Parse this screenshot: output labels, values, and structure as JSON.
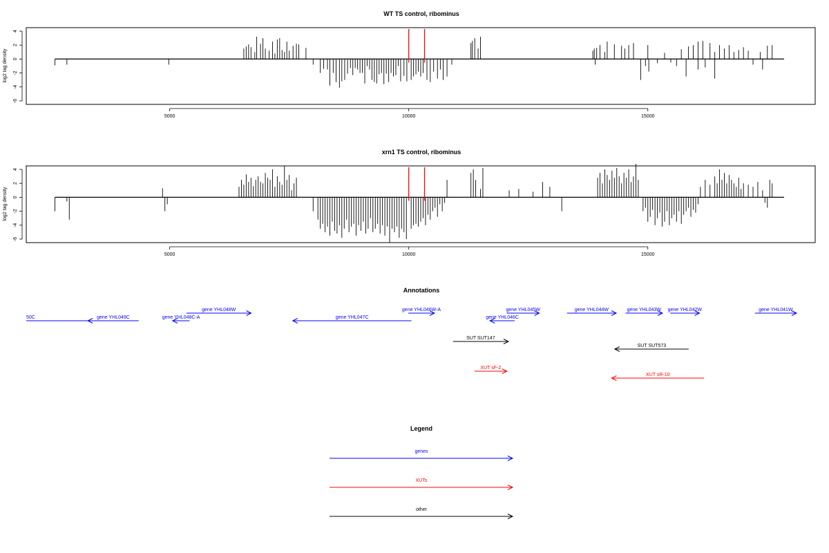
{
  "chart_data": [
    {
      "type": "bar",
      "title": "WT TS control, ribominus",
      "xlabel": "",
      "ylabel": "log2 tag density",
      "xlim": [
        2000,
        18500
      ],
      "ylim": [
        -6.5,
        4.5
      ],
      "xticks": [
        5000,
        10000,
        15000
      ],
      "yticks": [
        -6,
        -4,
        -2,
        0,
        2,
        4
      ],
      "grid": false,
      "markers": {
        "color": "#ff0000",
        "x": [
          10000,
          10330
        ],
        "y": [
          -0.5,
          4.3
        ]
      },
      "bars": [
        [
          2600,
          -0.9
        ],
        [
          2850,
          -0.8
        ],
        [
          4980,
          -0.8
        ],
        [
          6550,
          1.5
        ],
        [
          6600,
          1.8
        ],
        [
          6650,
          2.1
        ],
        [
          6700,
          1.7
        ],
        [
          6780,
          1.0
        ],
        [
          6820,
          3.2
        ],
        [
          6900,
          2.2
        ],
        [
          6950,
          3.0
        ],
        [
          7000,
          1.5
        ],
        [
          7080,
          1.2
        ],
        [
          7150,
          2.5
        ],
        [
          7200,
          0.8
        ],
        [
          7250,
          2.8
        ],
        [
          7300,
          3.0
        ],
        [
          7350,
          1.3
        ],
        [
          7400,
          1.0
        ],
        [
          7450,
          2.5
        ],
        [
          7500,
          1.2
        ],
        [
          7580,
          1.9
        ],
        [
          7650,
          2.2
        ],
        [
          7700,
          2.1
        ],
        [
          7850,
          1.6
        ],
        [
          8000,
          -0.8
        ],
        [
          8150,
          -2.0
        ],
        [
          8220,
          -1.4
        ],
        [
          8300,
          -1.5
        ],
        [
          8350,
          -3.8
        ],
        [
          8420,
          -2.0
        ],
        [
          8480,
          -3.3
        ],
        [
          8550,
          -4.1
        ],
        [
          8600,
          -3.2
        ],
        [
          8660,
          -3.0
        ],
        [
          8720,
          -2.1
        ],
        [
          8780,
          -1.3
        ],
        [
          8830,
          -2.3
        ],
        [
          8880,
          -1.3
        ],
        [
          8930,
          -1.5
        ],
        [
          8980,
          -2.0
        ],
        [
          9030,
          -2.0
        ],
        [
          9080,
          -3.5
        ],
        [
          9130,
          -1.0
        ],
        [
          9180,
          -1.5
        ],
        [
          9230,
          -3.0
        ],
        [
          9280,
          -3.3
        ],
        [
          9330,
          -3.5
        ],
        [
          9380,
          -2.2
        ],
        [
          9430,
          -2.0
        ],
        [
          9480,
          -3.6
        ],
        [
          9530,
          -2.1
        ],
        [
          9580,
          -3.3
        ],
        [
          9630,
          -2.0
        ],
        [
          9680,
          -2.5
        ],
        [
          9730,
          -2.3
        ],
        [
          9780,
          -1.0
        ],
        [
          9830,
          -3.2
        ],
        [
          9900,
          -2.4
        ],
        [
          9960,
          -3.2
        ],
        [
          10050,
          -3.0
        ],
        [
          10100,
          -2.5
        ],
        [
          10150,
          -2.2
        ],
        [
          10200,
          -1.8
        ],
        [
          10250,
          -2.5
        ],
        [
          10300,
          -2.0
        ],
        [
          10380,
          -3.0
        ],
        [
          10450,
          -3.3
        ],
        [
          10520,
          -1.8
        ],
        [
          10600,
          -2.8
        ],
        [
          10660,
          -1.5
        ],
        [
          10720,
          -3.0
        ],
        [
          10800,
          -2.5
        ],
        [
          10900,
          -0.8
        ],
        [
          11300,
          2.3
        ],
        [
          11330,
          2.6
        ],
        [
          11380,
          3.0
        ],
        [
          11450,
          1.5
        ],
        [
          11500,
          3.2
        ],
        [
          13850,
          1.2
        ],
        [
          13880,
          1.5
        ],
        [
          13900,
          -0.8
        ],
        [
          13930,
          1.6
        ],
        [
          14000,
          2.0
        ],
        [
          14100,
          1.0
        ],
        [
          14150,
          2.5
        ],
        [
          14300,
          2.1
        ],
        [
          14450,
          1.9
        ],
        [
          14520,
          1.5
        ],
        [
          14600,
          2.0
        ],
        [
          14700,
          2.3
        ],
        [
          14850,
          -3.0
        ],
        [
          14950,
          -1.0
        ],
        [
          15000,
          2.0
        ],
        [
          15020,
          -1.8
        ],
        [
          15200,
          -0.6
        ],
        [
          15350,
          0.9
        ],
        [
          15480,
          -0.5
        ],
        [
          15600,
          -1.0
        ],
        [
          15700,
          1.4
        ],
        [
          15800,
          -2.5
        ],
        [
          15850,
          1.8
        ],
        [
          15950,
          2.0
        ],
        [
          16050,
          -1.5
        ],
        [
          16050,
          2.5
        ],
        [
          16150,
          2.6
        ],
        [
          16200,
          -1.2
        ],
        [
          16300,
          2.3
        ],
        [
          16400,
          -2.8
        ],
        [
          16400,
          1.0
        ],
        [
          16500,
          2.0
        ],
        [
          16600,
          1.5
        ],
        [
          16700,
          2.0
        ],
        [
          16800,
          1.0
        ],
        [
          16900,
          1.3
        ],
        [
          17000,
          1.7
        ],
        [
          17100,
          1.2
        ],
        [
          17200,
          -0.8
        ],
        [
          17350,
          1.0
        ],
        [
          17400,
          -1.5
        ],
        [
          17500,
          1.9
        ],
        [
          17600,
          2.0
        ]
      ]
    },
    {
      "type": "bar",
      "title": "xrn1 TS control, ribominus",
      "xlabel": "",
      "ylabel": "log2 tag density",
      "xlim": [
        2000,
        18500
      ],
      "ylim": [
        -6.5,
        4.5
      ],
      "xticks": [
        5000,
        10000,
        15000
      ],
      "yticks": [
        -6,
        -4,
        -2,
        0,
        2,
        4
      ],
      "grid": false,
      "markers": {
        "color": "#ff0000",
        "x": [
          10000,
          10330
        ],
        "y": [
          -0.5,
          4.3
        ]
      },
      "bars": [
        [
          2600,
          -2.0
        ],
        [
          2850,
          -0.6
        ],
        [
          2900,
          -3.2
        ],
        [
          4850,
          1.3
        ],
        [
          4900,
          -2.0
        ],
        [
          4950,
          -1.0
        ],
        [
          6450,
          1.5
        ],
        [
          6500,
          2.5
        ],
        [
          6550,
          1.8
        ],
        [
          6600,
          3.3
        ],
        [
          6650,
          2.2
        ],
        [
          6700,
          2.8
        ],
        [
          6750,
          1.6
        ],
        [
          6800,
          2.5
        ],
        [
          6850,
          3.0
        ],
        [
          6900,
          2.2
        ],
        [
          6950,
          2.0
        ],
        [
          7000,
          3.5
        ],
        [
          7050,
          2.8
        ],
        [
          7100,
          2.5
        ],
        [
          7150,
          4.0
        ],
        [
          7200,
          1.5
        ],
        [
          7250,
          3.0
        ],
        [
          7300,
          2.2
        ],
        [
          7350,
          1.8
        ],
        [
          7400,
          4.5
        ],
        [
          7450,
          2.5
        ],
        [
          7500,
          3.2
        ],
        [
          7550,
          1.0
        ],
        [
          7600,
          2.0
        ],
        [
          7650,
          2.8
        ],
        [
          8000,
          -2.0
        ],
        [
          8100,
          -3.2
        ],
        [
          8150,
          -4.5
        ],
        [
          8200,
          -3.8
        ],
        [
          8250,
          -5.0
        ],
        [
          8300,
          -4.2
        ],
        [
          8350,
          -5.5
        ],
        [
          8400,
          -3.5
        ],
        [
          8450,
          -4.8
        ],
        [
          8500,
          -5.2
        ],
        [
          8550,
          -4.0
        ],
        [
          8600,
          -5.8
        ],
        [
          8650,
          -4.5
        ],
        [
          8700,
          -3.2
        ],
        [
          8750,
          -5.0
        ],
        [
          8800,
          -4.2
        ],
        [
          8850,
          -3.8
        ],
        [
          8900,
          -5.5
        ],
        [
          8950,
          -4.0
        ],
        [
          9000,
          -4.8
        ],
        [
          9050,
          -3.5
        ],
        [
          9100,
          -5.2
        ],
        [
          9150,
          -4.5
        ],
        [
          9200,
          -3.0
        ],
        [
          9250,
          -5.0
        ],
        [
          9300,
          -4.5
        ],
        [
          9350,
          -3.8
        ],
        [
          9400,
          -5.2
        ],
        [
          9450,
          -4.0
        ],
        [
          9500,
          -5.5
        ],
        [
          9550,
          -4.2
        ],
        [
          9600,
          -6.5
        ],
        [
          9650,
          -4.5
        ],
        [
          9700,
          -5.0
        ],
        [
          9750,
          -4.2
        ],
        [
          9800,
          -5.8
        ],
        [
          9850,
          -4.5
        ],
        [
          9900,
          -5.0
        ],
        [
          9950,
          -6.0
        ],
        [
          10050,
          -4.5
        ],
        [
          10100,
          -4.0
        ],
        [
          10150,
          -3.8
        ],
        [
          10200,
          -4.2
        ],
        [
          10250,
          -3.5
        ],
        [
          10300,
          -3.0
        ],
        [
          10350,
          -4.0
        ],
        [
          10400,
          -2.5
        ],
        [
          10450,
          -3.2
        ],
        [
          10500,
          -2.0
        ],
        [
          10550,
          -1.5
        ],
        [
          10600,
          -2.8
        ],
        [
          10650,
          -1.0
        ],
        [
          10700,
          -2.0
        ],
        [
          10750,
          -0.8
        ],
        [
          10800,
          2.5
        ],
        [
          11300,
          3.5
        ],
        [
          11350,
          4.0
        ],
        [
          11400,
          2.5
        ],
        [
          11500,
          1.2
        ],
        [
          11550,
          4.2
        ],
        [
          12100,
          1.0
        ],
        [
          12300,
          1.2
        ],
        [
          12600,
          0.8
        ],
        [
          12800,
          2.2
        ],
        [
          12950,
          1.5
        ],
        [
          13200,
          -2.0
        ],
        [
          13950,
          2.8
        ],
        [
          14000,
          3.5
        ],
        [
          14050,
          2.0
        ],
        [
          14100,
          4.0
        ],
        [
          14150,
          3.2
        ],
        [
          14200,
          2.5
        ],
        [
          14250,
          3.8
        ],
        [
          14300,
          2.8
        ],
        [
          14350,
          4.2
        ],
        [
          14400,
          3.0
        ],
        [
          14450,
          2.0
        ],
        [
          14500,
          3.5
        ],
        [
          14550,
          2.8
        ],
        [
          14600,
          4.0
        ],
        [
          14650,
          2.2
        ],
        [
          14700,
          3.0
        ],
        [
          14750,
          4.8
        ],
        [
          14800,
          2.5
        ],
        [
          14900,
          -2.0
        ],
        [
          14950,
          -1.5
        ],
        [
          15000,
          -3.5
        ],
        [
          15050,
          -2.8
        ],
        [
          15100,
          -1.8
        ],
        [
          15150,
          -4.0
        ],
        [
          15200,
          -3.0
        ],
        [
          15250,
          -2.2
        ],
        [
          15300,
          -4.2
        ],
        [
          15350,
          -3.5
        ],
        [
          15400,
          -2.0
        ],
        [
          15450,
          -4.0
        ],
        [
          15500,
          -3.0
        ],
        [
          15550,
          -2.5
        ],
        [
          15600,
          -3.5
        ],
        [
          15650,
          -2.0
        ],
        [
          15700,
          -3.8
        ],
        [
          15750,
          -2.5
        ],
        [
          15800,
          -2.0
        ],
        [
          15850,
          -1.5
        ],
        [
          15900,
          -2.8
        ],
        [
          15950,
          -1.8
        ],
        [
          16000,
          -2.2
        ],
        [
          16050,
          -1.0
        ],
        [
          16100,
          1.5
        ],
        [
          16200,
          2.5
        ],
        [
          16300,
          1.8
        ],
        [
          16400,
          3.0
        ],
        [
          16450,
          2.0
        ],
        [
          16500,
          4.0
        ],
        [
          16550,
          2.5
        ],
        [
          16600,
          3.5
        ],
        [
          16650,
          2.0
        ],
        [
          16700,
          3.2
        ],
        [
          16750,
          2.5
        ],
        [
          16800,
          2.0
        ],
        [
          16850,
          1.5
        ],
        [
          16900,
          2.8
        ],
        [
          16950,
          1.2
        ],
        [
          17000,
          2.0
        ],
        [
          17100,
          1.8
        ],
        [
          17200,
          1.5
        ],
        [
          17300,
          2.2
        ],
        [
          17400,
          1.0
        ],
        [
          17450,
          -0.8
        ],
        [
          17500,
          -1.5
        ],
        [
          17550,
          2.5
        ],
        [
          17600,
          2.0
        ]
      ]
    }
  ],
  "annotations": {
    "title": "Annotations",
    "features": [
      {
        "label": "50C",
        "start": 2000,
        "end": 4550,
        "strand": "+",
        "row": 1,
        "kind": "gene",
        "arrow": false
      },
      {
        "label": "gene YHL049C",
        "start": 4000,
        "end": 5650,
        "strand": "-",
        "row": 1,
        "kind": "gene"
      },
      {
        "label": "gene YHL048C-A",
        "start": 6750,
        "end": 7300,
        "strand": "-",
        "row": 1,
        "kind": "gene"
      },
      {
        "label": "gene YHL048W",
        "start": 7200,
        "end": 9300,
        "strand": "+",
        "row": 0,
        "kind": "gene"
      },
      {
        "label": "gene YHL047C",
        "start": 10650,
        "end": 14500,
        "strand": "-",
        "row": 1,
        "kind": "gene"
      },
      {
        "label": "gene YHL046W-A",
        "start": 14400,
        "end": 15250,
        "strand": "+",
        "row": 0,
        "kind": "gene"
      },
      {
        "label": "gene YHL046C",
        "start": 17050,
        "end": 17850,
        "strand": "-",
        "row": 1,
        "kind": "gene"
      },
      {
        "label": "gene YHL045W",
        "start": 17600,
        "end": 18650,
        "strand": "+",
        "row": 0,
        "kind": "gene"
      },
      {
        "label": "gene YHL044W",
        "start": 19550,
        "end": 21150,
        "strand": "+",
        "row": 0,
        "kind": "gene"
      },
      {
        "label": "gene YHL043W",
        "start": 21450,
        "end": 22650,
        "strand": "+",
        "row": 0,
        "kind": "gene"
      },
      {
        "label": "gene YHL042W",
        "start": 22900,
        "end": 23850,
        "strand": "+",
        "row": 0,
        "kind": "gene"
      },
      {
        "label": "gene YHL041W",
        "start": 25650,
        "end": 27000,
        "strand": "+",
        "row": 0,
        "kind": "gene"
      },
      {
        "label": "SUT SUT147",
        "start": 15850,
        "end": 17650,
        "strand": "+",
        "row": 2,
        "kind": "other"
      },
      {
        "label": "SUT SUT573",
        "start": 21100,
        "end": 23500,
        "strand": "-",
        "row": 3,
        "kind": "other"
      },
      {
        "label": "XUT sF-2",
        "start": 16550,
        "end": 17600,
        "strand": "+",
        "row": 4,
        "kind": "xut"
      },
      {
        "label": "XUT sR-10",
        "start": 21000,
        "end": 24000,
        "strand": "-",
        "row": 5,
        "kind": "xut"
      }
    ]
  },
  "legend": {
    "title": "Legend",
    "items": [
      {
        "label": "genes",
        "color": "#0000ff"
      },
      {
        "label": "XUTs",
        "color": "#ff0000"
      },
      {
        "label": "other",
        "color": "#000000"
      }
    ]
  },
  "colors": {
    "gene": "#0000ff",
    "xut": "#ff0000",
    "other": "#000000"
  }
}
